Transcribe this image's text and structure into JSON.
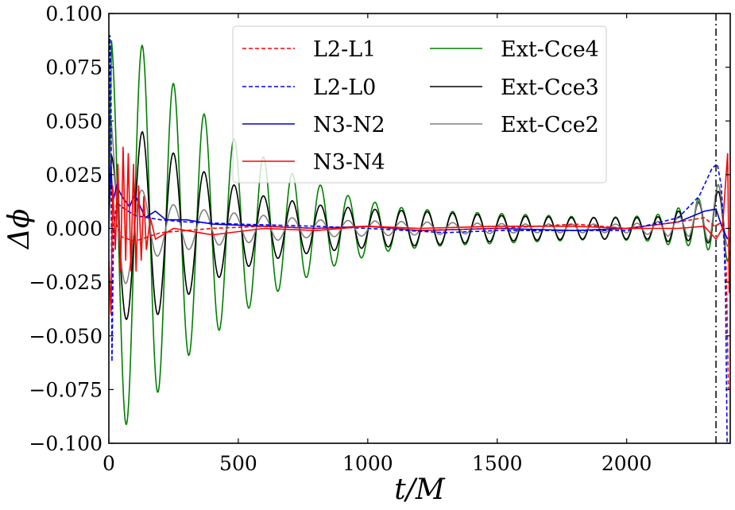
{
  "chart_data": {
    "type": "line",
    "title": "",
    "xlabel": "t/M",
    "ylabel": "Δϕ",
    "xlim": [
      0,
      2400
    ],
    "ylim": [
      -0.1,
      0.1
    ],
    "x_ticks": [
      0,
      500,
      1000,
      1500,
      2000
    ],
    "x_tick_labels": [
      "0",
      "500",
      "1000",
      "1500",
      "2000"
    ],
    "y_ticks": [
      0.1,
      0.075,
      0.05,
      0.025,
      0.0,
      -0.025,
      -0.05,
      -0.075,
      -0.1
    ],
    "y_tick_labels": [
      "0.100",
      "0.075",
      "0.050",
      "0.025",
      "0.000",
      "−0.025",
      "−0.050",
      "−0.075",
      "−0.100"
    ],
    "grid": false,
    "legend_position": "top-center",
    "legend_columns": 2,
    "vertical_line": {
      "x": 2345,
      "style": "dash-dot",
      "color": "#000000"
    },
    "series": [
      {
        "name": "L2-L1",
        "color": "#ff0000",
        "style": "dashed",
        "points": [
          [
            0,
            -0.015
          ],
          [
            8,
            -0.038
          ],
          [
            15,
            0.006
          ],
          [
            25,
            0.003
          ],
          [
            50,
            -0.004
          ],
          [
            100,
            -0.006
          ],
          [
            150,
            -0.004
          ],
          [
            200,
            -0.002
          ],
          [
            300,
            -0.001
          ],
          [
            400,
            0.0
          ],
          [
            600,
            0.001
          ],
          [
            800,
            0.0
          ],
          [
            1000,
            0.001
          ],
          [
            1200,
            -0.001
          ],
          [
            1500,
            0.0
          ],
          [
            1800,
            0.002
          ],
          [
            2000,
            0.0
          ],
          [
            2200,
            0.003
          ],
          [
            2300,
            0.005
          ],
          [
            2340,
            0.001
          ],
          [
            2370,
            0.003
          ],
          [
            2385,
            -0.02
          ],
          [
            2393,
            -0.075
          ]
        ]
      },
      {
        "name": "L2-L0",
        "color": "#0000ff",
        "style": "dashed",
        "points": [
          [
            0,
            0.015
          ],
          [
            4,
            0.09
          ],
          [
            8,
            0.07
          ],
          [
            12,
            -0.062
          ],
          [
            18,
            0.0
          ],
          [
            30,
            0.012
          ],
          [
            50,
            0.01
          ],
          [
            100,
            0.006
          ],
          [
            200,
            0.004
          ],
          [
            300,
            0.003
          ],
          [
            500,
            0.002
          ],
          [
            800,
            0.001
          ],
          [
            1000,
            0.0
          ],
          [
            1300,
            -0.002
          ],
          [
            1500,
            -0.001
          ],
          [
            1800,
            -0.001
          ],
          [
            2000,
            -0.001
          ],
          [
            2200,
            0.005
          ],
          [
            2280,
            0.015
          ],
          [
            2330,
            0.028
          ],
          [
            2350,
            0.03
          ],
          [
            2365,
            0.02
          ],
          [
            2375,
            0.0
          ],
          [
            2382,
            -0.03
          ],
          [
            2388,
            -0.1
          ]
        ]
      },
      {
        "name": "N3-N2",
        "color": "#0000cd",
        "style": "solid",
        "points": [
          [
            0,
            0.01
          ],
          [
            8,
            0.03
          ],
          [
            15,
            0.012
          ],
          [
            30,
            0.02
          ],
          [
            50,
            0.015
          ],
          [
            80,
            0.01
          ],
          [
            100,
            0.016
          ],
          [
            140,
            0.005
          ],
          [
            180,
            0.008
          ],
          [
            220,
            0.004
          ],
          [
            300,
            0.004
          ],
          [
            400,
            0.002
          ],
          [
            600,
            0.001
          ],
          [
            800,
            0.0
          ],
          [
            1000,
            0.001
          ],
          [
            1200,
            -0.001
          ],
          [
            1500,
            0.0
          ],
          [
            1800,
            -0.001
          ],
          [
            2000,
            0.0
          ],
          [
            2200,
            0.003
          ],
          [
            2300,
            0.008
          ],
          [
            2345,
            0.009
          ],
          [
            2370,
            0.0
          ],
          [
            2390,
            -0.005
          ]
        ]
      },
      {
        "name": "N3-N4",
        "color": "#ff0000",
        "style": "solid",
        "points": [
          [
            0,
            -0.015
          ],
          [
            8,
            -0.04
          ],
          [
            15,
            0.02
          ],
          [
            25,
            -0.01
          ],
          [
            35,
            0.03
          ],
          [
            45,
            -0.02
          ],
          [
            55,
            0.038
          ],
          [
            65,
            -0.015
          ],
          [
            75,
            0.035
          ],
          [
            85,
            -0.02
          ],
          [
            95,
            0.03
          ],
          [
            105,
            -0.02
          ],
          [
            115,
            0.02
          ],
          [
            125,
            -0.015
          ],
          [
            135,
            0.015
          ],
          [
            145,
            -0.01
          ],
          [
            160,
            0.005
          ],
          [
            180,
            -0.005
          ],
          [
            250,
            0.0
          ],
          [
            400,
            -0.003
          ],
          [
            600,
            0.0
          ],
          [
            800,
            -0.001
          ],
          [
            1000,
            0.001
          ],
          [
            1200,
            0.0
          ],
          [
            1500,
            0.001
          ],
          [
            1800,
            0.001
          ],
          [
            2000,
            0.0
          ],
          [
            2200,
            0.0
          ],
          [
            2300,
            0.001
          ],
          [
            2345,
            -0.005
          ],
          [
            2370,
            0.0
          ],
          [
            2390,
            0.035
          ],
          [
            2396,
            -0.03
          ]
        ]
      },
      {
        "name": "Ext-Cce4",
        "color": "#008000",
        "style": "solid",
        "amp_decay": [
          [
            0,
            0.0
          ],
          [
            10,
            0.09
          ],
          [
            60,
            0.092
          ],
          [
            130,
            0.085
          ],
          [
            300,
            0.06
          ],
          [
            500,
            0.04
          ],
          [
            700,
            0.026
          ],
          [
            900,
            0.016
          ],
          [
            1100,
            0.01
          ],
          [
            1300,
            0.008
          ],
          [
            1500,
            0.007
          ],
          [
            1700,
            0.006
          ],
          [
            1900,
            0.005
          ],
          [
            2100,
            0.006
          ],
          [
            2250,
            0.01
          ],
          [
            2330,
            0.014
          ],
          [
            2390,
            0.02
          ]
        ],
        "period_start": 125,
        "period_end": 74,
        "offset_end": 0.005
      },
      {
        "name": "Ext-Cce3",
        "color": "#000000",
        "style": "solid",
        "amp_decay": [
          [
            0,
            0.0
          ],
          [
            10,
            0.035
          ],
          [
            60,
            0.042
          ],
          [
            130,
            0.045
          ],
          [
            250,
            0.035
          ],
          [
            400,
            0.024
          ],
          [
            600,
            0.015
          ],
          [
            800,
            0.011
          ],
          [
            1000,
            0.009
          ],
          [
            1200,
            0.008
          ],
          [
            1500,
            0.006
          ],
          [
            1800,
            0.005
          ],
          [
            2100,
            0.005
          ],
          [
            2250,
            0.008
          ],
          [
            2345,
            0.012
          ],
          [
            2390,
            0.014
          ]
        ],
        "period_start": 125,
        "period_end": 74,
        "offset_end": 0.006
      },
      {
        "name": "Ext-Cce2",
        "color": "#808080",
        "style": "solid",
        "amp_decay": [
          [
            0,
            0.0
          ],
          [
            10,
            0.05
          ],
          [
            40,
            0.03
          ],
          [
            100,
            0.02
          ],
          [
            200,
            0.012
          ],
          [
            400,
            0.008
          ],
          [
            600,
            0.006
          ],
          [
            800,
            0.004
          ],
          [
            1200,
            0.003
          ],
          [
            1600,
            0.002
          ],
          [
            2000,
            0.002
          ],
          [
            2200,
            0.004
          ],
          [
            2330,
            0.012
          ],
          [
            2390,
            0.016
          ]
        ],
        "period_start": 125,
        "period_end": 74,
        "offset_end": 0.008
      }
    ]
  }
}
